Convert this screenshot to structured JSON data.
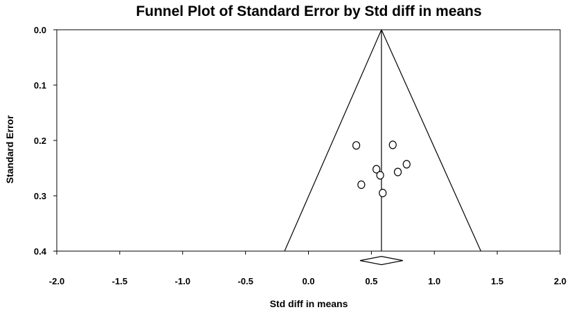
{
  "chart_data": {
    "type": "scatter",
    "title": "Funnel Plot of Standard Error by Std diff in means",
    "xlabel": "Std diff in means",
    "ylabel": "Standard Error",
    "xlim": [
      -2.0,
      2.0
    ],
    "ylim": [
      0.0,
      0.4
    ],
    "y_inverted": true,
    "grid": false,
    "legend": "none",
    "x_ticks": [
      "-2.0",
      "-1.5",
      "-1.0",
      "-0.5",
      "0.0",
      "0.5",
      "1.0",
      "1.5",
      "2.0"
    ],
    "x_tick_values": [
      -2.0,
      -1.5,
      -1.0,
      -0.5,
      0.0,
      0.5,
      1.0,
      1.5,
      2.0
    ],
    "y_ticks": [
      "0.0",
      "0.1",
      "0.2",
      "0.3",
      "0.4"
    ],
    "y_tick_values": [
      0.0,
      0.1,
      0.2,
      0.3,
      0.4
    ],
    "combined_effect": 0.58,
    "funnel_base": [
      -0.19,
      1.37
    ],
    "combined_diamond": {
      "lower": 0.41,
      "estimate": 0.58,
      "upper": 0.75,
      "se": 0.417
    },
    "points": [
      {
        "x": 0.38,
        "y": 0.209
      },
      {
        "x": 0.67,
        "y": 0.208
      },
      {
        "x": 0.78,
        "y": 0.243
      },
      {
        "x": 0.54,
        "y": 0.252
      },
      {
        "x": 0.71,
        "y": 0.257
      },
      {
        "x": 0.57,
        "y": 0.263
      },
      {
        "x": 0.42,
        "y": 0.28
      },
      {
        "x": 0.59,
        "y": 0.295
      }
    ]
  }
}
